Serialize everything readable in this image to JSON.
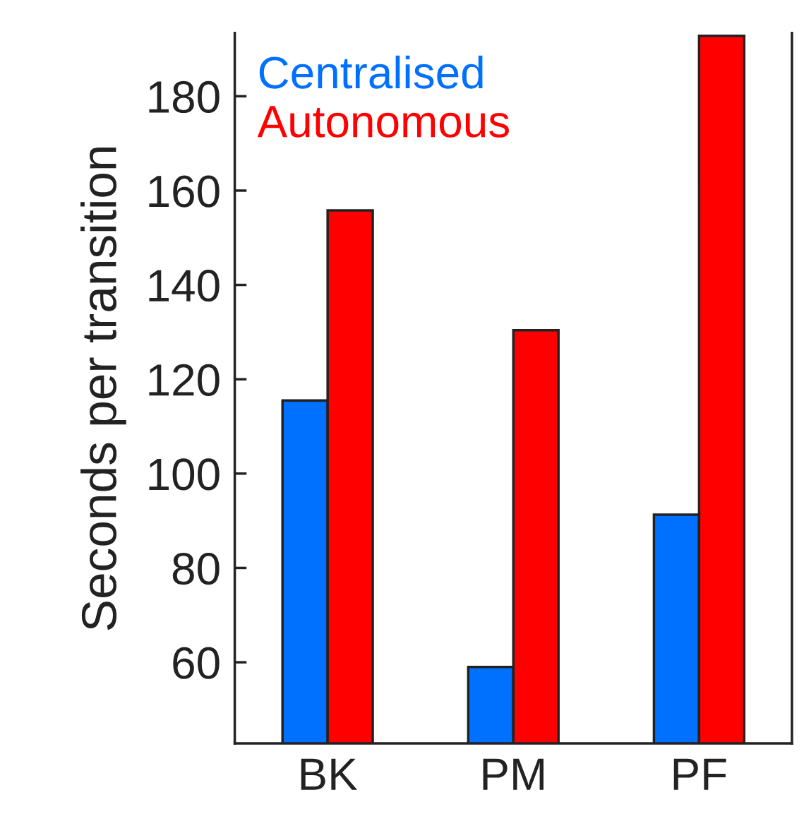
{
  "chart_data": {
    "type": "bar",
    "ylabel": "Seconds per transition",
    "categories": [
      "BK",
      "PM",
      "PF"
    ],
    "series": [
      {
        "name": "Centralised",
        "color": "#0070ff",
        "values": [
          115.5,
          59,
          91.3
        ]
      },
      {
        "name": "Autonomous",
        "color": "#ff0000",
        "values": [
          155.8,
          130.4,
          192.8
        ]
      }
    ],
    "ylim": [
      42.8,
      193.4
    ],
    "yticks": [
      60,
      80,
      100,
      120,
      140,
      160,
      180
    ],
    "grid": false,
    "legend": "top left"
  }
}
